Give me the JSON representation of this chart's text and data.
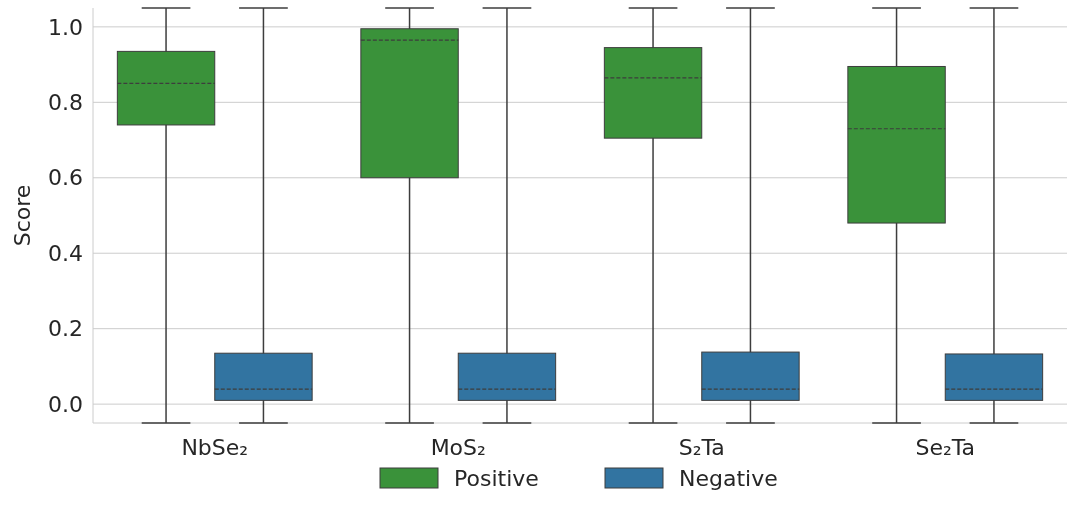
{
  "chart_data": {
    "type": "box",
    "ylabel": "Score",
    "categories": [
      "NbSe₂",
      "MoS₂",
      "S₂Ta",
      "Se₂Ta"
    ],
    "ylim": [
      -0.05,
      1.05
    ],
    "yticks": [
      {
        "value": 0,
        "label": "0.0"
      },
      {
        "value": 0.2,
        "label": "0.2"
      },
      {
        "value": 0.4,
        "label": "0.4"
      },
      {
        "value": 0.6,
        "label": "0.6"
      },
      {
        "value": 0.8,
        "label": "0.8"
      },
      {
        "value": 1,
        "label": "1.0"
      }
    ],
    "grid": "y",
    "legend": "bottom",
    "series": [
      {
        "name": "Positive",
        "color": "#3a923a",
        "boxes": [
          {
            "low": -0.05,
            "q1": 0.74,
            "median": 0.85,
            "q3": 0.935,
            "high": 1.05
          },
          {
            "low": -0.05,
            "q1": 0.6,
            "median": 0.965,
            "q3": 0.995,
            "high": 1.05
          },
          {
            "low": -0.05,
            "q1": 0.705,
            "median": 0.865,
            "q3": 0.945,
            "high": 1.05
          },
          {
            "low": -0.05,
            "q1": 0.48,
            "median": 0.73,
            "q3": 0.895,
            "high": 1.05
          }
        ]
      },
      {
        "name": "Negative",
        "color": "#3274a1",
        "boxes": [
          {
            "low": -0.05,
            "q1": 0.01,
            "median": 0.04,
            "q3": 0.135,
            "high": 1.05
          },
          {
            "low": -0.05,
            "q1": 0.01,
            "median": 0.04,
            "q3": 0.135,
            "high": 1.05
          },
          {
            "low": -0.05,
            "q1": 0.01,
            "median": 0.04,
            "q3": 0.138,
            "high": 1.05
          },
          {
            "low": -0.05,
            "q1": 0.01,
            "median": 0.04,
            "q3": 0.133,
            "high": 1.05
          }
        ]
      }
    ]
  }
}
